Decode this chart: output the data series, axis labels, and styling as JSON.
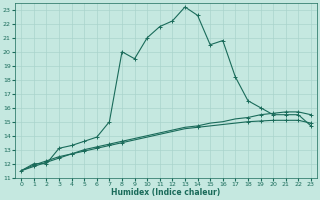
{
  "xlabel": "Humidex (Indice chaleur)",
  "bg_color": "#c5e8e0",
  "line_color": "#1a6b5a",
  "grid_color": "#aad4cc",
  "xlim": [
    -0.5,
    23.5
  ],
  "ylim": [
    11,
    23.5
  ],
  "xticks": [
    0,
    1,
    2,
    3,
    4,
    5,
    6,
    7,
    8,
    9,
    10,
    11,
    12,
    13,
    14,
    15,
    16,
    17,
    18,
    19,
    20,
    21,
    22,
    23
  ],
  "yticks": [
    11,
    12,
    13,
    14,
    15,
    16,
    17,
    18,
    19,
    20,
    21,
    22,
    23
  ],
  "curve1_x": [
    0,
    1,
    2,
    3,
    4,
    5,
    6,
    7,
    8,
    9,
    10,
    11,
    12,
    13,
    14,
    15,
    16,
    17,
    18,
    19,
    20,
    21,
    22,
    23
  ],
  "curve1_y": [
    11.5,
    12.0,
    12.0,
    13.1,
    13.3,
    13.6,
    13.9,
    15.0,
    20.0,
    19.5,
    21.0,
    21.8,
    22.2,
    23.2,
    22.6,
    20.5,
    20.8,
    18.2,
    16.5,
    16.0,
    15.5,
    15.5,
    15.5,
    14.7
  ],
  "curve2_x": [
    0,
    1,
    2,
    3,
    4,
    5,
    6,
    7,
    8,
    9,
    10,
    11,
    12,
    13,
    14,
    15,
    16,
    17,
    18,
    19,
    20,
    21,
    22,
    23
  ],
  "curve2_y": [
    11.5,
    11.8,
    12.1,
    12.4,
    12.7,
    12.9,
    13.1,
    13.3,
    13.5,
    13.7,
    13.9,
    14.1,
    14.3,
    14.5,
    14.6,
    14.7,
    14.8,
    14.9,
    15.0,
    15.05,
    15.1,
    15.1,
    15.1,
    14.9
  ],
  "curve3_x": [
    0,
    1,
    2,
    3,
    4,
    5,
    6,
    7,
    8,
    9,
    10,
    11,
    12,
    13,
    14,
    15,
    16,
    17,
    18,
    19,
    20,
    21,
    22,
    23
  ],
  "curve3_y": [
    11.5,
    11.9,
    12.2,
    12.5,
    12.7,
    13.0,
    13.2,
    13.4,
    13.6,
    13.8,
    14.0,
    14.2,
    14.4,
    14.6,
    14.7,
    14.9,
    15.0,
    15.2,
    15.3,
    15.5,
    15.6,
    15.7,
    15.7,
    15.5
  ],
  "curve1_markers_x": [
    0,
    1,
    2,
    3,
    4,
    5,
    6,
    7,
    8,
    9,
    10,
    11,
    12,
    13,
    14,
    15,
    16,
    17,
    18,
    19,
    20,
    21,
    22,
    23
  ],
  "curve1_markers_y": [
    11.5,
    12.0,
    12.0,
    13.1,
    13.3,
    13.6,
    13.9,
    15.0,
    20.0,
    19.5,
    21.0,
    21.8,
    22.2,
    23.2,
    22.6,
    20.5,
    20.8,
    18.2,
    16.5,
    16.0,
    15.5,
    15.5,
    15.5,
    14.7
  ],
  "curve2_markers_x": [
    1,
    2,
    3,
    4,
    5,
    6,
    7,
    8,
    14,
    18,
    19,
    20,
    21,
    22,
    23
  ],
  "curve2_markers_y": [
    11.8,
    12.1,
    12.4,
    12.7,
    12.9,
    13.1,
    13.3,
    13.5,
    14.6,
    15.0,
    15.05,
    15.1,
    15.1,
    15.1,
    14.9
  ],
  "curve3_markers_x": [
    1,
    2,
    3,
    4,
    5,
    6,
    7,
    8,
    14,
    18,
    19,
    20,
    21,
    22,
    23
  ],
  "curve3_markers_y": [
    11.9,
    12.2,
    12.5,
    12.7,
    13.0,
    13.2,
    13.4,
    13.6,
    14.7,
    15.3,
    15.5,
    15.6,
    15.7,
    15.7,
    15.5
  ]
}
